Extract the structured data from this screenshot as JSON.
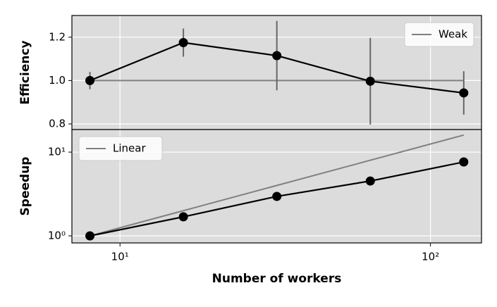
{
  "chart_data": [
    {
      "type": "line",
      "ylabel": "Efficiency",
      "x": [
        8,
        16,
        32,
        64,
        128
      ],
      "xlim": [
        7,
        146
      ],
      "xticks": [
        {
          "value": 10,
          "label": "10¹"
        },
        {
          "value": 100,
          "label": "10²"
        }
      ],
      "ylim": [
        0.774,
        1.3
      ],
      "yticks": [
        0.8,
        1.0,
        1.2
      ],
      "grid": true,
      "legend": "upper right",
      "series": [
        {
          "name": "Weak",
          "color": "#808080",
          "values": [
            1,
            1,
            1,
            1,
            1
          ]
        },
        {
          "color": "#000000",
          "values": [
            1.0,
            1.175,
            1.115,
            0.997,
            0.943
          ],
          "errors": [
            0.04,
            0.065,
            0.16,
            0.2,
            0.1
          ],
          "error_color": "#666666"
        }
      ]
    },
    {
      "type": "line",
      "ylabel": "Speedup",
      "xlabel": "Number of workers",
      "x": [
        8,
        16,
        32,
        64,
        128
      ],
      "xlim": [
        7,
        146
      ],
      "xticks": [
        {
          "value": 10,
          "label": "10¹"
        },
        {
          "value": 100,
          "label": "10²"
        }
      ],
      "ylim": [
        0.824,
        18.6
      ],
      "yticks": [
        {
          "value": 1,
          "label": "10⁰"
        },
        {
          "value": 10,
          "label": "10¹"
        }
      ],
      "log_x": true,
      "log_y": true,
      "grid": true,
      "legend": "upper left",
      "series": [
        {
          "name": "Linear",
          "color": "#808080",
          "values": [
            1,
            2,
            4,
            8,
            16
          ]
        },
        {
          "color": "#000000",
          "values": [
            1,
            1.69,
            2.96,
            4.52,
            7.63
          ]
        }
      ]
    }
  ]
}
